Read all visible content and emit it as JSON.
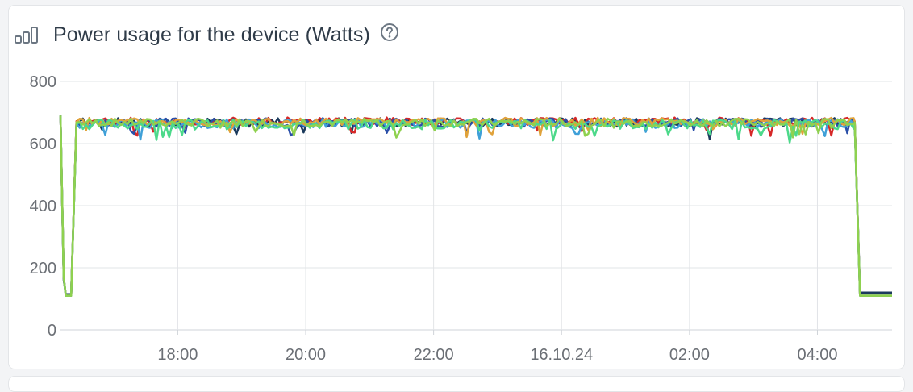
{
  "header": {
    "icon": "bar-chart-icon",
    "title": "Power usage for the device (Watts)",
    "help_icon": "help-circle-icon"
  },
  "colors": {
    "series": [
      "#1b3a5c",
      "#d62828",
      "#2a4fa8",
      "#3fa0d8",
      "#e0a23a",
      "#4cd98a",
      "#8fd14f"
    ]
  },
  "chart_data": {
    "type": "line",
    "title": "Power usage for the device (Watts)",
    "xlabel": "",
    "ylabel": "",
    "ylim": [
      0,
      800
    ],
    "yticks": [
      0,
      200,
      400,
      600,
      800
    ],
    "xlim": [
      "2024-10-15 16:10",
      "2024-10-16 05:10"
    ],
    "xticks": [
      {
        "t": "2024-10-15 18:00",
        "label": "18:00"
      },
      {
        "t": "2024-10-15 20:00",
        "label": "20:00"
      },
      {
        "t": "2024-10-15 22:00",
        "label": "22:00"
      },
      {
        "t": "2024-10-16 00:00",
        "label": "16.10.24"
      },
      {
        "t": "2024-10-16 02:00",
        "label": "02:00"
      },
      {
        "t": "2024-10-16 04:00",
        "label": "04:00"
      }
    ],
    "grid": true,
    "legend": "none",
    "series": [
      {
        "points": [
          [
            "2024-10-15 16:10",
            690
          ],
          [
            "2024-10-15 16:13",
            160
          ],
          [
            "2024-10-15 16:15",
            115
          ],
          [
            "2024-10-15 16:20",
            115
          ],
          [
            "2024-10-15 16:25",
            670
          ],
          [
            "2024-10-16 04:35",
            670
          ],
          [
            "2024-10-16 04:40",
            120
          ],
          [
            "2024-10-16 05:10",
            120
          ]
        ],
        "base": 668,
        "noise": 14,
        "seed": 1
      },
      {
        "points": [
          [
            "2024-10-15 16:10",
            690
          ],
          [
            "2024-10-15 16:13",
            170
          ],
          [
            "2024-10-15 16:15",
            110
          ],
          [
            "2024-10-15 16:20",
            110
          ],
          [
            "2024-10-15 16:25",
            672
          ],
          [
            "2024-10-16 04:35",
            672
          ],
          [
            "2024-10-16 04:40",
            110
          ],
          [
            "2024-10-16 05:10",
            110
          ]
        ],
        "base": 672,
        "noise": 12,
        "seed": 2
      },
      {
        "points": [
          [
            "2024-10-15 16:10",
            690
          ],
          [
            "2024-10-15 16:13",
            170
          ],
          [
            "2024-10-15 16:15",
            110
          ],
          [
            "2024-10-15 16:20",
            110
          ],
          [
            "2024-10-15 16:25",
            668
          ],
          [
            "2024-10-16 04:35",
            668
          ],
          [
            "2024-10-16 04:40",
            110
          ],
          [
            "2024-10-16 05:10",
            110
          ]
        ],
        "base": 668,
        "noise": 14,
        "seed": 3
      },
      {
        "points": [
          [
            "2024-10-15 16:10",
            690
          ],
          [
            "2024-10-15 16:13",
            170
          ],
          [
            "2024-10-15 16:15",
            110
          ],
          [
            "2024-10-15 16:20",
            110
          ],
          [
            "2024-10-15 16:25",
            664
          ],
          [
            "2024-10-16 04:35",
            664
          ],
          [
            "2024-10-16 04:40",
            110
          ],
          [
            "2024-10-16 05:10",
            110
          ]
        ],
        "base": 664,
        "noise": 15,
        "seed": 4
      },
      {
        "points": [
          [
            "2024-10-15 16:10",
            690
          ],
          [
            "2024-10-15 16:13",
            170
          ],
          [
            "2024-10-15 16:15",
            110
          ],
          [
            "2024-10-15 16:20",
            110
          ],
          [
            "2024-10-15 16:25",
            670
          ],
          [
            "2024-10-16 04:35",
            670
          ],
          [
            "2024-10-16 04:40",
            110
          ],
          [
            "2024-10-16 05:10",
            110
          ]
        ],
        "base": 670,
        "noise": 13,
        "seed": 5
      },
      {
        "points": [
          [
            "2024-10-15 16:10",
            690
          ],
          [
            "2024-10-15 16:13",
            170
          ],
          [
            "2024-10-15 16:15",
            110
          ],
          [
            "2024-10-15 16:20",
            110
          ],
          [
            "2024-10-15 16:25",
            662
          ],
          [
            "2024-10-16 04:35",
            662
          ],
          [
            "2024-10-16 04:40",
            110
          ],
          [
            "2024-10-16 05:10",
            110
          ]
        ],
        "base": 662,
        "noise": 16,
        "seed": 6
      },
      {
        "points": [
          [
            "2024-10-15 16:10",
            690
          ],
          [
            "2024-10-15 16:13",
            170
          ],
          [
            "2024-10-15 16:15",
            110
          ],
          [
            "2024-10-15 16:20",
            110
          ],
          [
            "2024-10-15 16:25",
            668
          ],
          [
            "2024-10-16 04:35",
            668
          ],
          [
            "2024-10-16 04:40",
            110
          ],
          [
            "2024-10-16 05:10",
            110
          ]
        ],
        "base": 668,
        "noise": 13,
        "seed": 7
      }
    ]
  }
}
